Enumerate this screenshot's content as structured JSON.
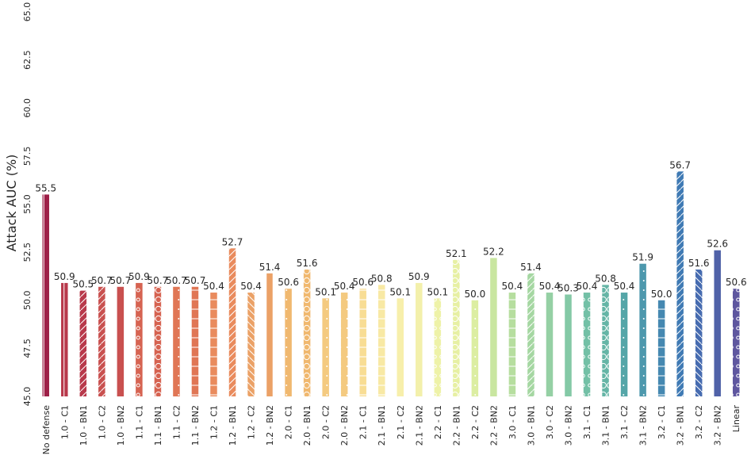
{
  "chart_data": {
    "type": "bar",
    "title": "",
    "xlabel": "",
    "ylabel": "Attack AUC (%)",
    "ylim": [
      45.0,
      65.0
    ],
    "yticks": [
      "45.0",
      "47.5",
      "50.0",
      "52.5",
      "55.0",
      "57.5",
      "60.0",
      "62.5",
      "65.0"
    ],
    "ytick_values": [
      45.0,
      47.5,
      50.0,
      52.5,
      55.0,
      57.5,
      60.0,
      62.5,
      65.0
    ],
    "grid": false,
    "legend": "none",
    "categories": [
      "No defense",
      "1.0 - C1",
      "1.0 - BN1",
      "1.0 - C2",
      "1.0 - BN2",
      "1.1 - C1",
      "1.1 - BN1",
      "1.1 - C2",
      "1.1 - BN2",
      "1.2 - C1",
      "1.2 - BN1",
      "1.2 - C2",
      "1.2 - BN2",
      "2.0 - C1",
      "2.0 - BN1",
      "2.0 - C2",
      "2.0 - BN2",
      "2.1 - C1",
      "2.1 - BN1",
      "2.1 - C2",
      "2.1 - BN2",
      "2.2 - C1",
      "2.2 - BN1",
      "2.2 - C2",
      "2.2 - BN2",
      "3.0 - C1",
      "3.0 - BN1",
      "3.0 - C2",
      "3.0 - BN2",
      "3.1 - C1",
      "3.1 - BN1",
      "3.1 - C2",
      "3.1 - BN2",
      "3.2 - C1",
      "3.2 - BN1",
      "3.2 - C2",
      "3.2 - BN2",
      "Linear"
    ],
    "values": [
      55.5,
      50.9,
      50.5,
      50.7,
      50.7,
      50.9,
      50.7,
      50.7,
      50.7,
      50.4,
      52.7,
      50.4,
      51.4,
      50.6,
      51.6,
      50.1,
      50.4,
      50.6,
      50.8,
      50.1,
      50.9,
      50.1,
      52.1,
      50.0,
      52.2,
      50.4,
      51.4,
      50.4,
      50.3,
      50.4,
      50.8,
      50.4,
      51.9,
      50.0,
      56.7,
      51.6,
      52.6,
      50.6
    ],
    "value_labels": [
      "55.5",
      "50.9",
      "50.5",
      "50.7",
      "50.7",
      "50.9",
      "50.7",
      "50.7",
      "50.7",
      "50.4",
      "52.7",
      "50.4",
      "51.4",
      "50.6",
      "51.6",
      "50.1",
      "50.4",
      "50.6",
      "50.8",
      "50.1",
      "50.9",
      "50.1",
      "52.1",
      "50.0",
      "52.2",
      "50.4",
      "51.4",
      "50.4",
      "50.3",
      "50.4",
      "50.8",
      "50.4",
      "51.9",
      "50.0",
      "56.7",
      "51.6",
      "52.6",
      "50.6"
    ],
    "colors": [
      "#9e1f47",
      "#b8394b",
      "#b8394b",
      "#c9504f",
      "#c9504f",
      "#d66351",
      "#d66351",
      "#e07655",
      "#e07655",
      "#e98b5d",
      "#e98b5d",
      "#eba166",
      "#eba166",
      "#f0b86f",
      "#f0b86f",
      "#f4ca80",
      "#f4ca80",
      "#f8dd94",
      "#f8e9a4",
      "#f7efab",
      "#f3f0ab",
      "#eef2a8",
      "#e7f0a4",
      "#dceea2",
      "#c9e6a0",
      "#b6de9f",
      "#a5d7a2",
      "#95d0a4",
      "#84c9a6",
      "#73c0a6",
      "#65b5a6",
      "#55a6a8",
      "#4d98ad",
      "#4588b1",
      "#3f7ab4",
      "#466bb0",
      "#5062a8",
      "#5e569f"
    ],
    "hatches": [
      "|",
      "|",
      "/",
      "/",
      "",
      "o",
      "O",
      ".",
      "-",
      "-",
      "/",
      "\\",
      "|",
      ".",
      "O",
      ".",
      ".",
      "-",
      "-",
      "",
      "",
      "o",
      "O",
      ".",
      "",
      "-",
      "/",
      "",
      "",
      "o",
      "O",
      ".",
      ".",
      "-",
      "/",
      "\\",
      "",
      "o"
    ]
  }
}
